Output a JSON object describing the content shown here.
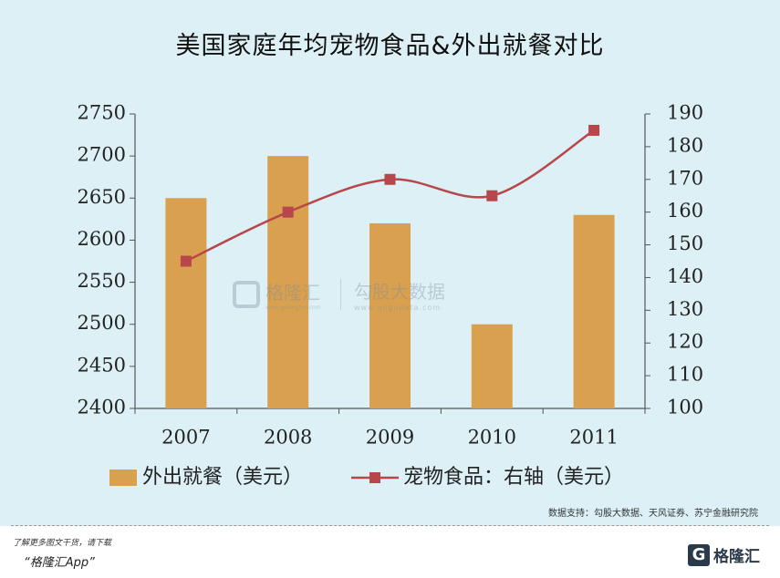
{
  "title": "美国家庭年均宠物食品&外出就餐对比",
  "source": "数据支持：勾股大数据、天风证券、苏宁金融研究院",
  "watermark": {
    "brand": "格隆汇",
    "site": "www.gelonghui.com",
    "brand2": "勾股大数据",
    "site2": "www.gogudata.com"
  },
  "footer": {
    "line1": "了解更多图文干货，请下载",
    "line2": "“格隆汇App”",
    "logo_mark": "G",
    "logo_name": "格隆汇"
  },
  "colors": {
    "bar": "#d9a050",
    "line": "#b8474b",
    "background": "#dcf0f6"
  },
  "chart_data": {
    "type": "bar",
    "title": "美国家庭年均宠物食品&外出就餐对比",
    "categories": [
      "2007",
      "2008",
      "2009",
      "2010",
      "2011"
    ],
    "series": [
      {
        "name": "外出就餐（美元）",
        "type": "bar",
        "axis": "left",
        "values": [
          2650,
          2700,
          2620,
          2500,
          2630
        ]
      },
      {
        "name": "宠物食品：右轴（美元）",
        "type": "line",
        "axis": "right",
        "values": [
          145,
          160,
          170,
          165,
          185
        ]
      }
    ],
    "ylim_left": [
      2400,
      2750
    ],
    "yticks_left": [
      "2750",
      "2700",
      "2650",
      "2600",
      "2550",
      "2500",
      "2450",
      "2400"
    ],
    "ylim_right": [
      100,
      190
    ],
    "yticks_right": [
      "190",
      "180",
      "170",
      "160",
      "150",
      "140",
      "130",
      "120",
      "110",
      "100"
    ],
    "grid": false,
    "legend_position": "bottom"
  }
}
